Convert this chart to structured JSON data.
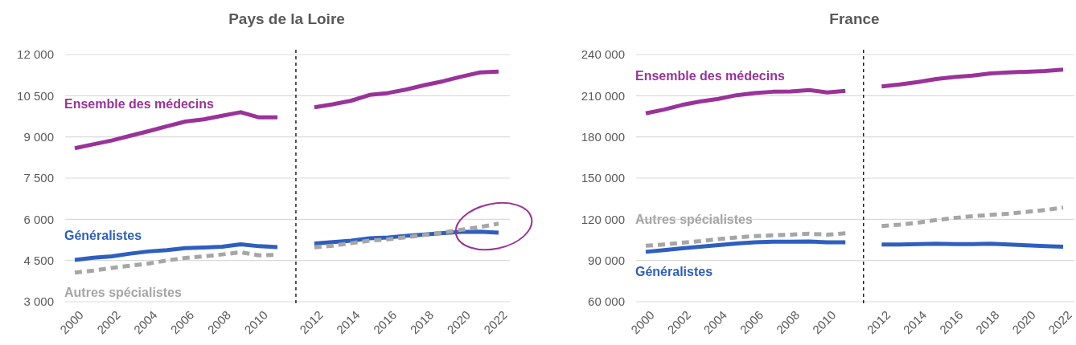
{
  "chart_data": [
    {
      "type": "line",
      "title": "Pays de la Loire",
      "categories": [
        "2000",
        null,
        "2002",
        null,
        "2004",
        null,
        "2006",
        null,
        "2008",
        null,
        "2010",
        null,
        null,
        "2012",
        null,
        "2014",
        null,
        "2016",
        null,
        "2018",
        null,
        "2020",
        null,
        "2022"
      ],
      "ylim": [
        3000,
        12000
      ],
      "yticks": [
        {
          "value": 3000,
          "label": "3 000"
        },
        {
          "value": 4500,
          "label": "4 500"
        },
        {
          "value": 6000,
          "label": "6 000"
        },
        {
          "value": 7500,
          "label": "7 500"
        },
        {
          "value": 9000,
          "label": "9 000"
        },
        {
          "value": 10500,
          "label": "10 500"
        },
        {
          "value": 12000,
          "label": "12 000"
        }
      ],
      "grid": "y",
      "ref_lines": [
        {
          "axis": "x",
          "color": "#000000",
          "line_style": "dashed"
        }
      ],
      "series": [
        {
          "name": "Ensemble des médecins",
          "color": "#993399",
          "line_style": "solid",
          "values": [
            8590,
            8730,
            8870,
            9040,
            9210,
            9390,
            9560,
            9640,
            9770,
            9900,
            9710,
            9710,
            null,
            10080,
            10190,
            10320,
            10530,
            10600,
            10730,
            10890,
            11030,
            11200,
            11350,
            11380
          ]
        },
        {
          "name": "Généralistes",
          "color": "#2e5fbf",
          "line_style": "solid",
          "values": [
            4520,
            4600,
            4650,
            4750,
            4830,
            4880,
            4950,
            4970,
            5000,
            5090,
            5020,
            4990,
            null,
            5120,
            5170,
            5220,
            5310,
            5340,
            5400,
            5450,
            5500,
            5540,
            5550,
            5510
          ]
        },
        {
          "name": "Autres spécialistes",
          "color": "#a6a6a6",
          "line_style": "dashed",
          "values": [
            4060,
            4130,
            4230,
            4310,
            4390,
            4500,
            4590,
            4650,
            4720,
            4800,
            4690,
            4710,
            null,
            4980,
            5040,
            5130,
            5220,
            5270,
            5350,
            5430,
            5520,
            5620,
            5720,
            5840
          ]
        }
      ]
    },
    {
      "type": "line",
      "title": "France",
      "categories": [
        "2000",
        null,
        "2002",
        null,
        "2004",
        null,
        "2006",
        null,
        "2008",
        null,
        "2010",
        null,
        null,
        "2012",
        null,
        "2014",
        null,
        "2016",
        null,
        "2018",
        null,
        "2020",
        null,
        "2022"
      ],
      "ylim": [
        60000,
        240000
      ],
      "yticks": [
        {
          "value": 60000,
          "label": "60 000"
        },
        {
          "value": 90000,
          "label": "90 000"
        },
        {
          "value": 120000,
          "label": "120 000"
        },
        {
          "value": 150000,
          "label": "150 000"
        },
        {
          "value": 180000,
          "label": "180 000"
        },
        {
          "value": 210000,
          "label": "210 000"
        },
        {
          "value": 240000,
          "label": "240 000"
        }
      ],
      "grid": "y",
      "ref_lines": [
        {
          "axis": "x",
          "color": "#000000",
          "line_style": "dashed"
        }
      ],
      "series": [
        {
          "name": "Ensemble des médecins",
          "color": "#993399",
          "line_style": "solid",
          "values": [
            197200,
            199900,
            203300,
            205800,
            207700,
            210400,
            211900,
            212900,
            213100,
            214100,
            212400,
            213600,
            null,
            216800,
            218200,
            220000,
            222200,
            223600,
            224600,
            226300,
            227000,
            227500,
            228000,
            229000
          ]
        },
        {
          "name": "Généralistes",
          "color": "#2e5fbf",
          "line_style": "solid",
          "values": [
            96300,
            97600,
            98800,
            100000,
            101200,
            102400,
            103200,
            103700,
            103700,
            103900,
            103200,
            103200,
            null,
            101700,
            101700,
            101900,
            102200,
            101900,
            101900,
            102200,
            101700,
            101000,
            100500,
            100000
          ]
        },
        {
          "name": "Autres spécialistes",
          "color": "#a6a6a6",
          "line_style": "dashed",
          "values": [
            100700,
            101700,
            102900,
            104100,
            105600,
            106800,
            107800,
            108300,
            108800,
            109500,
            108800,
            109800,
            null,
            115100,
            116100,
            117600,
            119500,
            121000,
            122200,
            123200,
            124100,
            125400,
            126800,
            128500
          ]
        }
      ]
    }
  ]
}
